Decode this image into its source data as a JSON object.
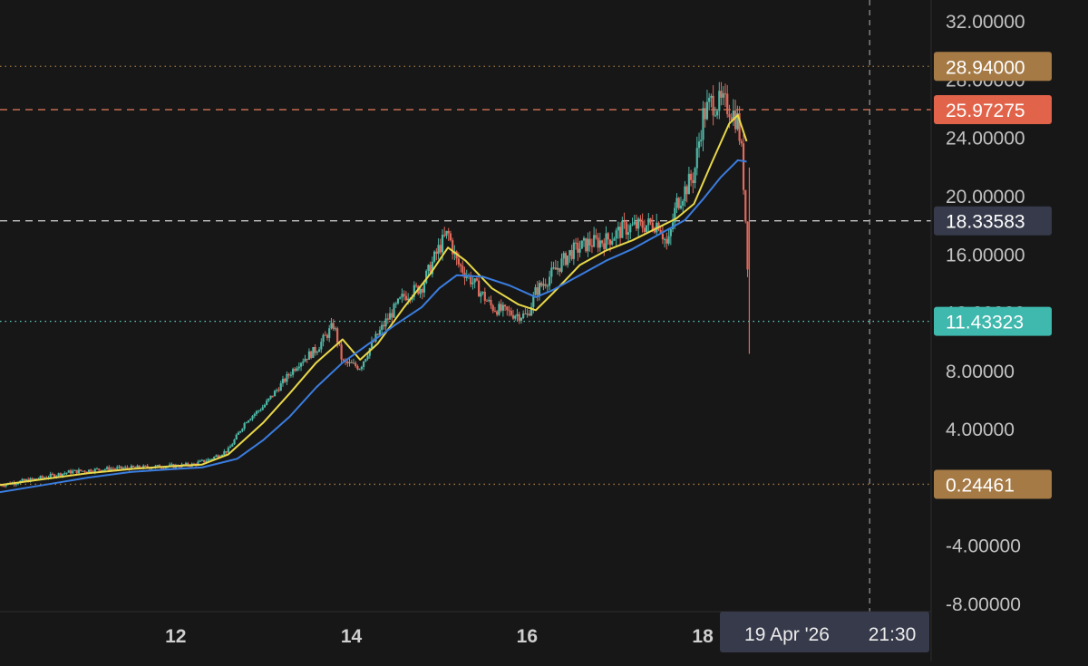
{
  "chart_data": {
    "type": "line",
    "title": "",
    "x_tick_labels": [
      "12",
      "14",
      "16",
      "18"
    ],
    "y_tick_labels": [
      "32.00000",
      "28.00000",
      "24.00000",
      "20.00000",
      "16.00000",
      "12.00000",
      "8.00000",
      "4.00000",
      "0.00000",
      "-4.00000",
      "-8.00000"
    ],
    "ylim": [
      -8.5,
      33.5
    ],
    "xlim": [
      10.0,
      20.6
    ],
    "grid": false,
    "crosshair": {
      "date_label": "19 Apr '26",
      "time_label": "21:30",
      "x": 19.9
    },
    "price_levels": [
      {
        "label": "28.94000",
        "value": 28.94,
        "line_color": "#a47a44",
        "badge_color": "#a57a45",
        "style": "dotted"
      },
      {
        "label": "25.97275",
        "value": 25.97275,
        "line_color": "#e57b5c",
        "badge_color": "#e1644a",
        "style": "dashed"
      },
      {
        "label": "18.33583",
        "value": 18.33583,
        "line_color": "#c8c8c8",
        "badge_color": "#363a4a",
        "style": "dashed"
      },
      {
        "label": "11.43323",
        "value": 11.43323,
        "line_color": "#5fcfc3",
        "badge_color": "#3fb8ad",
        "style": "dotted"
      },
      {
        "label": "0.24461",
        "value": 0.24461,
        "line_color": "#a47a44",
        "badge_color": "#a57a45",
        "style": "dotted"
      }
    ],
    "series": [
      {
        "type": "candlestick",
        "up_color": "#4fb7a5",
        "down_color": "#e06a5c",
        "points": [
          [
            10.0,
            0.2
          ],
          [
            10.4,
            0.6
          ],
          [
            10.8,
            1.1
          ],
          [
            11.2,
            1.3
          ],
          [
            11.6,
            1.4
          ],
          [
            12.0,
            1.5
          ],
          [
            12.2,
            1.6
          ],
          [
            12.4,
            2.0
          ],
          [
            12.6,
            2.6
          ],
          [
            12.8,
            4.6
          ],
          [
            13.0,
            5.6
          ],
          [
            13.2,
            7.1
          ],
          [
            13.4,
            8.6
          ],
          [
            13.6,
            9.5
          ],
          [
            13.8,
            11.2
          ],
          [
            13.9,
            8.6
          ],
          [
            14.1,
            8.3
          ],
          [
            14.2,
            9.5
          ],
          [
            14.4,
            11.5
          ],
          [
            14.6,
            13.2
          ],
          [
            14.8,
            13.8
          ],
          [
            15.0,
            16.5
          ],
          [
            15.1,
            17.5
          ],
          [
            15.2,
            15.5
          ],
          [
            15.4,
            14.0
          ],
          [
            15.6,
            12.4
          ],
          [
            15.8,
            12.0
          ],
          [
            16.0,
            11.8
          ],
          [
            16.1,
            13.5
          ],
          [
            16.3,
            14.8
          ],
          [
            16.5,
            16.2
          ],
          [
            16.7,
            16.8
          ],
          [
            16.9,
            17.0
          ],
          [
            17.1,
            17.8
          ],
          [
            17.3,
            18.0
          ],
          [
            17.5,
            18.2
          ],
          [
            17.6,
            16.5
          ],
          [
            17.7,
            19.5
          ],
          [
            17.9,
            21.5
          ],
          [
            18.0,
            25.5
          ],
          [
            18.1,
            26.5
          ],
          [
            18.3,
            26.2
          ],
          [
            18.4,
            25.2
          ],
          [
            18.45,
            22.5
          ],
          [
            18.5,
            17.0
          ],
          [
            18.52,
            14.0
          ],
          [
            18.53,
            11.43323
          ]
        ]
      },
      {
        "name": "",
        "color": "#e9d84a",
        "points": [
          [
            10.0,
            0.2
          ],
          [
            10.5,
            0.6
          ],
          [
            11.0,
            1.0
          ],
          [
            11.5,
            1.3
          ],
          [
            12.0,
            1.5
          ],
          [
            12.3,
            1.6
          ],
          [
            12.6,
            2.3
          ],
          [
            13.0,
            4.5
          ],
          [
            13.3,
            6.5
          ],
          [
            13.6,
            8.6
          ],
          [
            13.9,
            10.2
          ],
          [
            14.1,
            8.8
          ],
          [
            14.3,
            9.9
          ],
          [
            14.6,
            12.4
          ],
          [
            14.9,
            14.7
          ],
          [
            15.1,
            16.5
          ],
          [
            15.3,
            15.6
          ],
          [
            15.6,
            13.7
          ],
          [
            15.9,
            12.6
          ],
          [
            16.1,
            12.2
          ],
          [
            16.3,
            13.4
          ],
          [
            16.6,
            15.3
          ],
          [
            16.9,
            16.3
          ],
          [
            17.2,
            17.0
          ],
          [
            17.5,
            17.9
          ],
          [
            17.7,
            18.5
          ],
          [
            17.9,
            19.5
          ],
          [
            18.1,
            22.3
          ],
          [
            18.3,
            25.0
          ],
          [
            18.4,
            25.6
          ],
          [
            18.5,
            23.8
          ]
        ]
      },
      {
        "name": "",
        "color": "#3a7de0",
        "points": [
          [
            10.0,
            -0.3
          ],
          [
            10.5,
            0.2
          ],
          [
            11.0,
            0.7
          ],
          [
            11.5,
            1.1
          ],
          [
            12.0,
            1.3
          ],
          [
            12.3,
            1.4
          ],
          [
            12.7,
            2.0
          ],
          [
            13.0,
            3.3
          ],
          [
            13.3,
            4.9
          ],
          [
            13.6,
            6.9
          ],
          [
            13.9,
            8.6
          ],
          [
            14.2,
            9.9
          ],
          [
            14.5,
            11.2
          ],
          [
            14.8,
            12.4
          ],
          [
            15.0,
            13.7
          ],
          [
            15.2,
            14.6
          ],
          [
            15.5,
            14.5
          ],
          [
            15.8,
            13.9
          ],
          [
            16.1,
            13.1
          ],
          [
            16.3,
            13.6
          ],
          [
            16.6,
            14.6
          ],
          [
            16.9,
            15.6
          ],
          [
            17.2,
            16.4
          ],
          [
            17.5,
            17.4
          ],
          [
            17.8,
            18.4
          ],
          [
            18.0,
            19.8
          ],
          [
            18.2,
            21.3
          ],
          [
            18.4,
            22.5
          ],
          [
            18.5,
            22.4
          ]
        ]
      }
    ]
  }
}
